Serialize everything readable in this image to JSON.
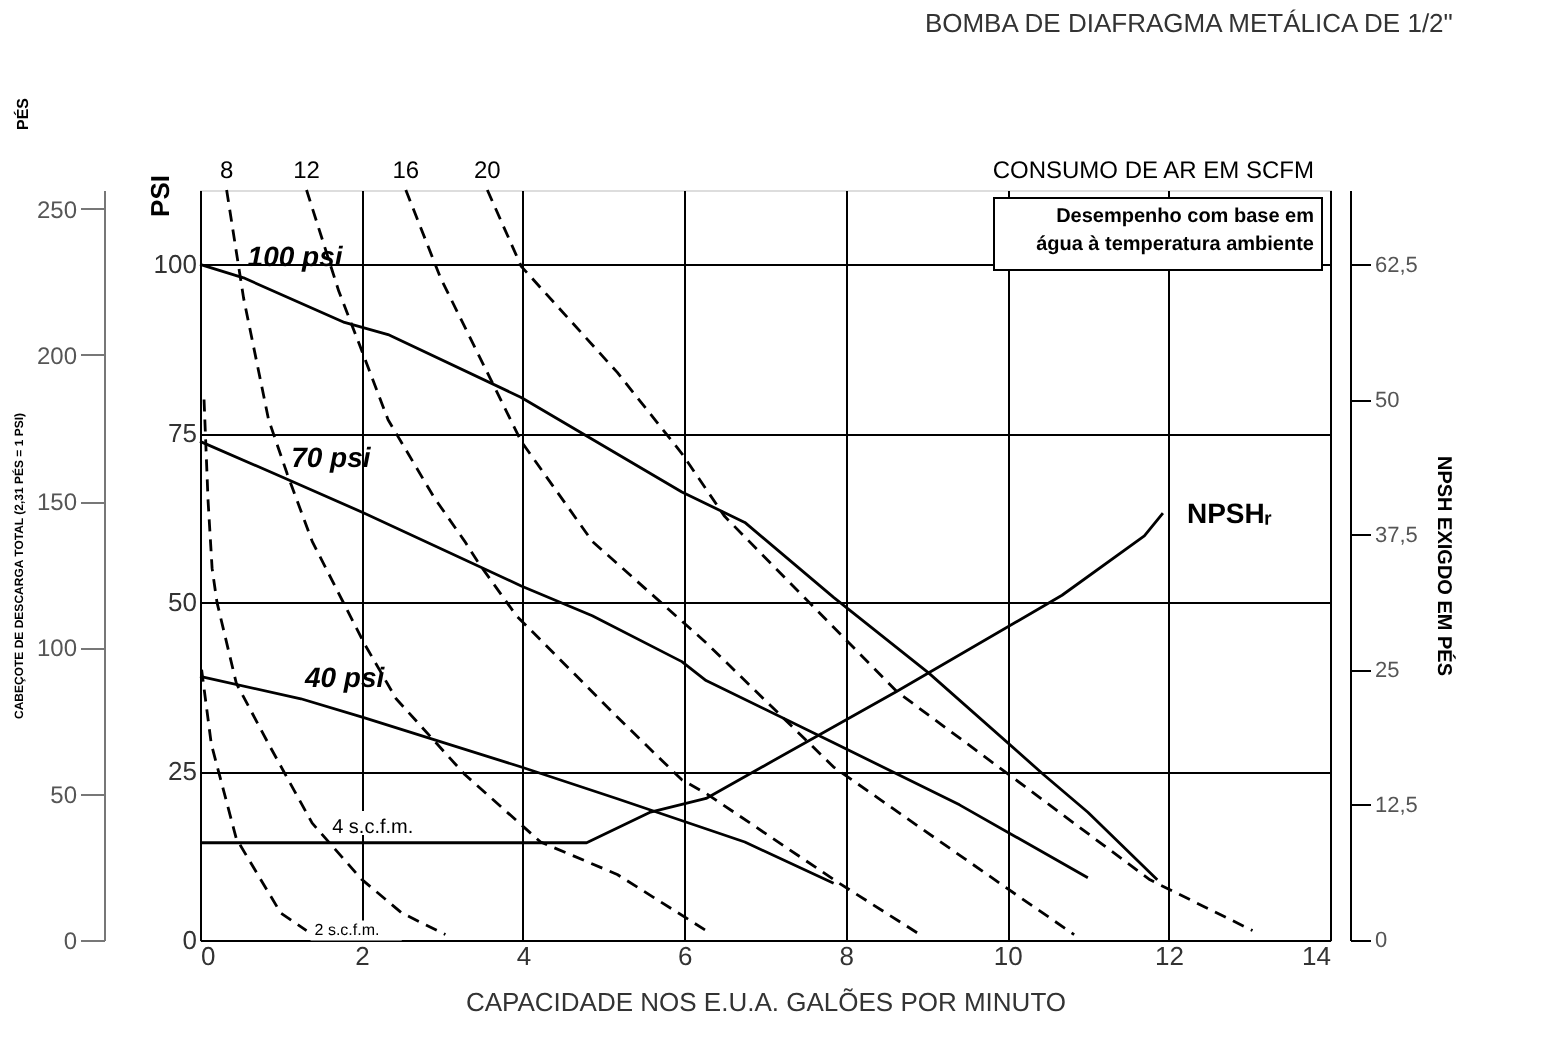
{
  "chart_data": {
    "type": "line",
    "title": "BOMBA DE DIAFRAGMA METÁLICA DE 1/2\"",
    "xlabel": "CAPACIDADE NOS E.U.A. GALÕES POR MINUTO",
    "ylabel": "PSI",
    "y2label": "CABEÇOTE DE DESCARGA TOTAL (2,31 PÉS = 1 PSI)",
    "y3label": "NPSH EXIGDO EM PÉS",
    "annotations": [
      "CONSUMO DE AR EM SCFM",
      "Desempenho com base em\nágua à temperatura ambiente",
      "PÉS"
    ],
    "xlim": [
      0,
      14
    ],
    "xticks": [
      0,
      2,
      4,
      6,
      8,
      10,
      12,
      14
    ],
    "ylim": [
      0,
      111
    ],
    "yticks": [
      0,
      25,
      50,
      75,
      100
    ],
    "y2lim": [
      0,
      256.4
    ],
    "y2ticks": [
      0,
      50,
      100,
      150,
      200,
      250
    ],
    "y3lim": [
      0,
      69.4
    ],
    "y3ticks": [
      0,
      {
        "value": 12.5,
        "label": "12,5"
      },
      25,
      {
        "value": 37.5,
        "label": "37,5"
      },
      50,
      {
        "value": 62.5,
        "label": "62,5"
      }
    ],
    "grid": true,
    "legend": false,
    "marker": "none",
    "series": [
      {
        "name": "100 psi",
        "color": "#000000",
        "line_style": "solid",
        "x": [
          0,
          0.54,
          1.79,
          2.33,
          3.98,
          5.97,
          6.75,
          7.85,
          9.03,
          10.45,
          11.0,
          11.86
        ],
        "values": [
          100,
          98,
          91.4,
          89.6,
          80.3,
          66.3,
          61.8,
          50.7,
          39.5,
          24.5,
          18.9,
          8.9
        ]
      },
      {
        "name": "70 psi",
        "color": "#000000",
        "line_style": "solid",
        "x": [
          0,
          1.08,
          2.03,
          3.98,
          4.86,
          5.97,
          6.27,
          7.85,
          9.41,
          11.0
        ],
        "values": [
          73.8,
          68.2,
          63.2,
          52.4,
          48,
          41.2,
          38.4,
          29.2,
          20,
          9.2
        ]
      },
      {
        "name": "40 psi",
        "color": "#000000",
        "line_style": "solid",
        "x": [
          0,
          1.25,
          2.03,
          3.98,
          5.17,
          6.75,
          7.85
        ],
        "values": [
          39,
          35.7,
          32.9,
          25.6,
          20.9,
          14.5,
          8.4
        ]
      },
      {
        "name": "NPSHᵣ",
        "color": "#000000",
        "line_style": "solid",
        "axis": "y3",
        "x": [
          0,
          4.79,
          5.57,
          6.27,
          8.63,
          10.68,
          11.7,
          11.93
        ],
        "values": [
          9,
          9,
          11.8,
          13.1,
          23,
          31.9,
          37.4,
          39.5
        ]
      },
      {
        "name": "8",
        "color": "#000000",
        "line_style": "dashed",
        "x": [
          0.33,
          0.54,
          0.85,
          1.08,
          1.39,
          2.03,
          2.43,
          3.28,
          4.22,
          5.17,
          6.27
        ],
        "values": [
          111,
          95,
          77,
          69,
          59,
          44,
          35.7,
          24.5,
          14.5,
          9.7,
          1.4
        ]
      },
      {
        "name": "12",
        "color": "#000000",
        "line_style": "dashed",
        "x": [
          1.32,
          1.72,
          1.96,
          2.33,
          2.9,
          3.28,
          3.44,
          3.92,
          5.17,
          5.97,
          6.27,
          7.92,
          8.92
        ],
        "values": [
          111,
          96,
          88.6,
          77,
          65.5,
          59,
          56,
          48,
          33,
          23.7,
          21.7,
          8.4,
          0.8
        ]
      },
      {
        "name": "16",
        "color": "#000000",
        "line_style": "dashed",
        "x": [
          2.55,
          2.98,
          3.6,
          3.98,
          4.86,
          6.27,
          7.85,
          9.98,
          10.83
        ],
        "values": [
          111,
          98,
          83,
          73.8,
          59,
          44,
          25.6,
          7.8,
          0.8
        ]
      },
      {
        "name": "20",
        "color": "#000000",
        "line_style": "dashed",
        "x": [
          3.56,
          3.98,
          5.17,
          5.97,
          6.5,
          8.63,
          10.21,
          11.77,
          13.04
        ],
        "values": [
          111,
          99.7,
          84,
          72,
          62.7,
          36.8,
          22.8,
          8.9,
          1.4
        ]
      },
      {
        "name": "4 s.c.f.m.",
        "color": "#000000",
        "line_style": "dashed",
        "x": [
          0.05,
          0.1,
          0.15,
          0.21,
          0.45,
          0.85,
          1.39,
          2.0,
          2.5,
          3.04
        ],
        "values": [
          80,
          65,
          55,
          50,
          38,
          29,
          17.3,
          9,
          4,
          0.8
        ]
      },
      {
        "name": "2 s.c.f.m.",
        "color": "#000000",
        "line_style": "dashed",
        "x": [
          0.02,
          0.14,
          0.45,
          1.0,
          1.32
        ],
        "values": [
          40,
          29,
          15,
          4,
          1.4
        ]
      }
    ]
  }
}
